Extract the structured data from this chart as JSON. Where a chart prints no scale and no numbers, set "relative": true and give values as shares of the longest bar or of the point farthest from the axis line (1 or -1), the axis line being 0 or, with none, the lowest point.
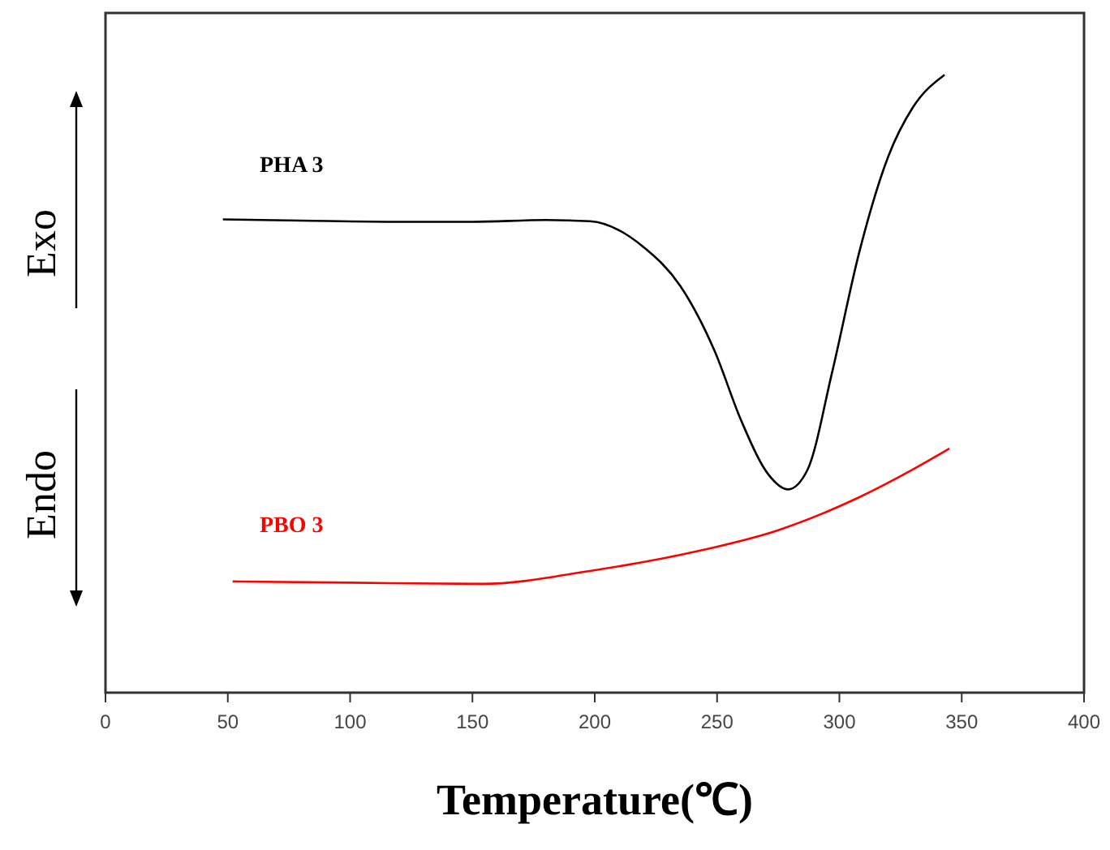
{
  "chart_data": {
    "type": "line",
    "relative": true,
    "xlabel": "Temperature(℃)",
    "xlim": [
      0,
      400
    ],
    "xticks": [
      0,
      50,
      100,
      150,
      200,
      250,
      300,
      350,
      400
    ],
    "grid": false,
    "marker": "none",
    "line_style": "solid",
    "annotations": [
      "Exo",
      "Endo"
    ],
    "series": [
      {
        "name": "PHA 3",
        "color": "#000000",
        "x": [
          48,
          80,
          120,
          150,
          180,
          198,
          220,
          235,
          249,
          260,
          271,
          279,
          287,
          297,
          308,
          320,
          330,
          343
        ],
        "values": [
          0.766,
          0.764,
          0.762,
          0.762,
          0.765,
          0.763,
          0.721,
          0.658,
          0.553,
          0.439,
          0.353,
          0.329,
          0.361,
          0.518,
          0.711,
          0.868,
          0.947,
          1
        ]
      },
      {
        "name": "PBO 3",
        "color": "#ff0000",
        "x": [
          52,
          100,
          154,
          198,
          242,
          275,
          308,
          330,
          345
        ],
        "values": [
          0.18,
          0.178,
          0.176,
          0.197,
          0.229,
          0.263,
          0.316,
          0.361,
          0.395
        ]
      }
    ]
  }
}
